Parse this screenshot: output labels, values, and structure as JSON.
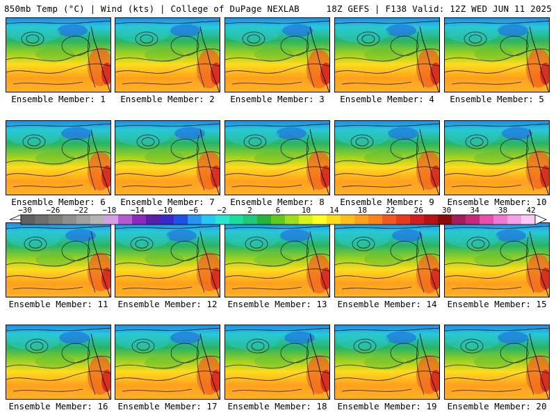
{
  "header": {
    "title_left": "850mb Temp (°C) | Wind (kts) | College of DuPage NEXLAB",
    "title_right": "18Z GEFS | F138 Valid: 12Z WED JUN 11 2025"
  },
  "panels": [
    {
      "label": "Ensemble Member: 1"
    },
    {
      "label": "Ensemble Member: 2"
    },
    {
      "label": "Ensemble Member: 3"
    },
    {
      "label": "Ensemble Member: 4"
    },
    {
      "label": "Ensemble Member: 5"
    },
    {
      "label": "Ensemble Member: 6"
    },
    {
      "label": "Ensemble Member: 7"
    },
    {
      "label": "Ensemble Member: 8"
    },
    {
      "label": "Ensemble Member: 9"
    },
    {
      "label": "Ensemble Member: 10"
    },
    {
      "label": "Ensemble Member: 11"
    },
    {
      "label": "Ensemble Member: 12"
    },
    {
      "label": "Ensemble Member: 13"
    },
    {
      "label": "Ensemble Member: 14"
    },
    {
      "label": "Ensemble Member: 15"
    },
    {
      "label": "Ensemble Member: 16"
    },
    {
      "label": "Ensemble Member: 17"
    },
    {
      "label": "Ensemble Member: 18"
    },
    {
      "label": "Ensemble Member: 19"
    },
    {
      "label": "Ensemble Member: 20"
    }
  ],
  "colorbar": {
    "ticks": [
      "-30",
      "-26",
      "-22",
      "-18",
      "-14",
      "-10",
      "-6",
      "-2",
      "2",
      "6",
      "10",
      "14",
      "18",
      "22",
      "26",
      "30",
      "34",
      "38",
      "42"
    ],
    "colors": [
      "#5f5f5f",
      "#6e6e6e",
      "#7e7e7e",
      "#8e8e8e",
      "#a0a0a0",
      "#b4b4b4",
      "#d2a0e6",
      "#b45ad2",
      "#8c28be",
      "#5a1eaa",
      "#3c28c8",
      "#1e50e6",
      "#2896f0",
      "#28c8f0",
      "#28e6d2",
      "#1edca0",
      "#1ec878",
      "#28b43c",
      "#64c81e",
      "#a0dc1e",
      "#dcf01e",
      "#ffff28",
      "#ffdc1e",
      "#ffbe1e",
      "#ffa01e",
      "#ff821e",
      "#f05a1e",
      "#e63c1e",
      "#d21e1e",
      "#b41414",
      "#8c0a0a",
      "#a01e5a",
      "#c8287c",
      "#e650aa",
      "#f078d2",
      "#f5a0e6",
      "#fac8f0"
    ]
  }
}
